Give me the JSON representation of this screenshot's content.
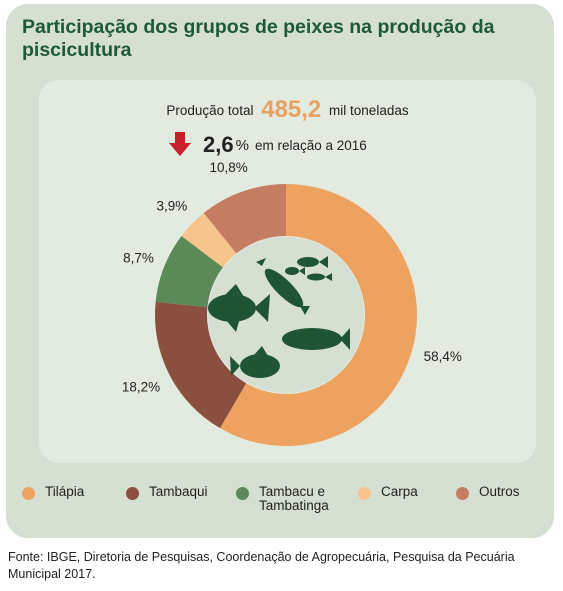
{
  "title": "Participação dos grupos de peixes na produção da piscicultura",
  "production": {
    "label": "Produção total",
    "value": "485,2",
    "unit": "mil toneladas"
  },
  "change": {
    "value": "2,6",
    "symbol": "%",
    "text": "em relação a 2016",
    "icon": "down-arrow-icon",
    "color": "#c8202a"
  },
  "chart_data": {
    "type": "pie",
    "donut": true,
    "categories": [
      "Tilápia",
      "Tambaqui",
      "Tambacu e Tambatinga",
      "Carpa",
      "Outros"
    ],
    "values": [
      58.4,
      18.2,
      8.7,
      3.9,
      10.8
    ],
    "labels": [
      "58,4%",
      "18,2%",
      "8,7%",
      "3,9%",
      "10,8%"
    ],
    "colors": [
      "#eda25f",
      "#8b4f3f",
      "#5b8a58",
      "#f8c48d",
      "#c47d62"
    ],
    "center_image": "fish-illustration",
    "legend_position": "bottom"
  },
  "legend": [
    {
      "label": "Tilápia"
    },
    {
      "label": "Tambaqui"
    },
    {
      "label": "Tambacu e\nTambatinga"
    },
    {
      "label": "Carpa"
    },
    {
      "label": "Outros"
    }
  ],
  "source": "Fonte: IBGE, Diretoria de Pesquisas, Coordenação de Agropecuária, Pesquisa da Pecuária Municipal 2017."
}
